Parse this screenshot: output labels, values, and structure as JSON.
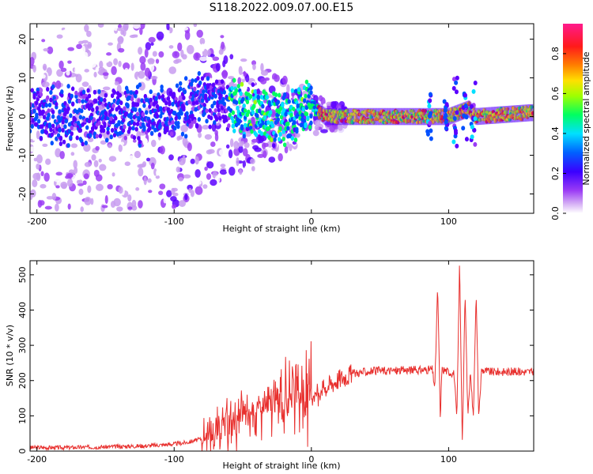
{
  "title": "S118.2022.009.07.00.E15",
  "colors": {
    "snr_line": "#e8302e",
    "axes": "#000000",
    "background": "#ffffff"
  },
  "chart_data": [
    {
      "type": "heatmap",
      "xlabel": "Height of straight line (km)",
      "ylabel": "Frequency (Hz)",
      "xlim": [
        -205,
        162
      ],
      "ylim": [
        -25,
        24
      ],
      "x_ticks": [
        -200,
        -100,
        0,
        100
      ],
      "y_ticks": [
        -20,
        -10,
        0,
        10,
        20
      ],
      "x_tick_labels": [
        "-200",
        "-100",
        "0",
        "100"
      ],
      "y_tick_labels": [
        "-20",
        "-10",
        "0",
        "10",
        "20"
      ],
      "colorbar": {
        "label": "Normalized spectral amplitude",
        "ticks": [
          0.0,
          0.2,
          0.4,
          0.6,
          0.8
        ],
        "tick_labels": [
          "0.0",
          "0.2",
          "0.4",
          "0.6",
          "0.8"
        ],
        "range": [
          0,
          0.95
        ],
        "colormap": [
          "#ffffff",
          "#c89cf0",
          "#9b3cf5",
          "#5a00ff",
          "#0050ff",
          "#00e0ff",
          "#00ff60",
          "#a0ff00",
          "#ffe000",
          "#ff8000",
          "#ff1a1a",
          "#ff1a8c"
        ]
      },
      "description_trend": {
        "center_frequency_by_height": [
          {
            "x": -200,
            "y": 0
          },
          {
            "x": -150,
            "y": 0
          },
          {
            "x": -100,
            "y": 1
          },
          {
            "x": -80,
            "y": 5
          },
          {
            "x": -60,
            "y": 3
          },
          {
            "x": -40,
            "y": 1
          },
          {
            "x": -25,
            "y": -1
          },
          {
            "x": -10,
            "y": 1
          },
          {
            "x": -5,
            "y": 3
          },
          {
            "x": 0,
            "y": 3
          },
          {
            "x": 10,
            "y": 0
          },
          {
            "x": 50,
            "y": 0
          },
          {
            "x": 85,
            "y": 0
          },
          {
            "x": 100,
            "y": 0
          },
          {
            "x": 115,
            "y": 2
          },
          {
            "x": 120,
            "y": 0
          },
          {
            "x": 160,
            "y": 1
          }
        ]
      }
    },
    {
      "type": "line",
      "xlabel": "Height of straight line (km)",
      "ylabel": "SNR (10 * v/v)",
      "xlim": [
        -205,
        162
      ],
      "ylim": [
        0,
        540
      ],
      "x_ticks": [
        -200,
        -100,
        0,
        100
      ],
      "y_ticks": [
        0,
        100,
        200,
        300,
        400,
        500
      ],
      "x_tick_labels": [
        "-200",
        "-100",
        "0",
        "100"
      ],
      "y_tick_labels": [
        "0",
        "100",
        "200",
        "300",
        "400",
        "500"
      ],
      "series": [
        {
          "color": "#e8302e",
          "x": [
            -205,
            -180,
            -150,
            -120,
            -100,
            -90,
            -80,
            -70,
            -60,
            -50,
            -40,
            -30,
            -20,
            -10,
            0,
            10,
            20,
            30,
            40,
            50,
            60,
            70,
            80,
            88,
            90,
            92,
            94,
            95,
            97,
            100,
            104,
            106,
            108,
            110,
            112,
            114,
            116,
            118,
            120,
            122,
            124,
            130,
            140,
            150,
            162
          ],
          "values": [
            10,
            10,
            12,
            15,
            20,
            25,
            35,
            55,
            80,
            100,
            115,
            130,
            140,
            150,
            155,
            180,
            205,
            220,
            225,
            228,
            228,
            230,
            230,
            232,
            180,
            470,
            80,
            230,
            230,
            225,
            220,
            90,
            540,
            20,
            450,
            100,
            230,
            90,
            450,
            90,
            230,
            225,
            225,
            225,
            225
          ]
        }
      ]
    }
  ]
}
